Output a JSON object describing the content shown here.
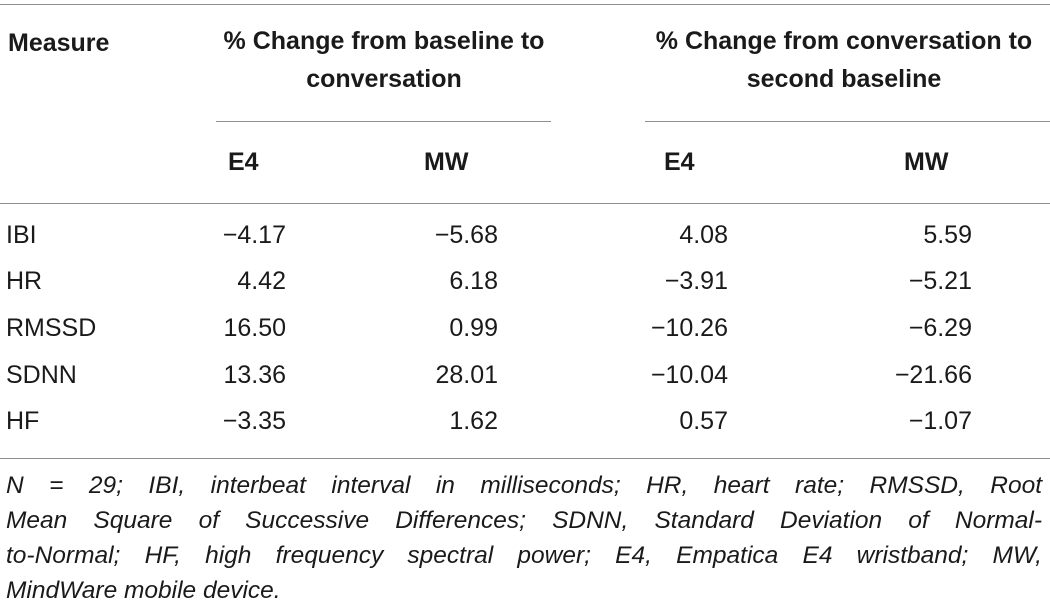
{
  "table": {
    "header": {
      "measure": "Measure",
      "group1": "% Change from baseline to conversation",
      "group2": "% Change from conversation to second baseline",
      "sub": [
        "E4",
        "MW",
        "E4",
        "MW"
      ]
    },
    "rows": [
      {
        "measure": "IBI",
        "values": [
          "−4.17",
          "−5.68",
          "4.08",
          "5.59"
        ]
      },
      {
        "measure": "HR",
        "values": [
          "4.42",
          "6.18",
          "−3.91",
          "−5.21"
        ]
      },
      {
        "measure": "RMSSD",
        "values": [
          "16.50",
          "0.99",
          "−10.26",
          "−6.29"
        ]
      },
      {
        "measure": "SDNN",
        "values": [
          "13.36",
          "28.01",
          "−10.04",
          "−21.66"
        ]
      },
      {
        "measure": "HF",
        "values": [
          "−3.35",
          "1.62",
          "0.57",
          "−1.07"
        ]
      }
    ],
    "footnote_lines": [
      "N = 29; IBI, interbeat interval in milliseconds; HR, heart rate; RMSSD, Root",
      "Mean Square of Successive Differences; SDNN, Standard Deviation of Normal-",
      "to-Normal; HF, high frequency spectral power; E4, Empatica E4 wristband; MW,",
      "MindWare mobile device."
    ]
  }
}
